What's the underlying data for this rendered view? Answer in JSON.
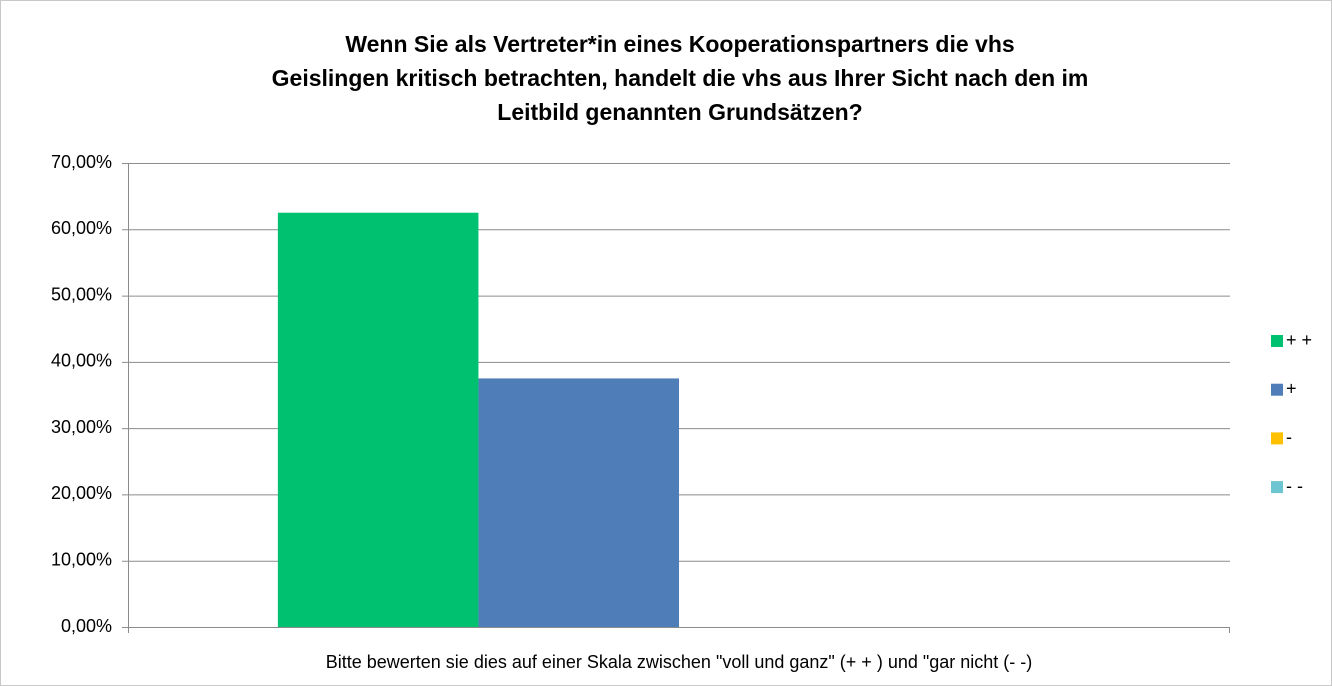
{
  "chart_data": {
    "type": "bar",
    "title": [
      "Wenn Sie als Vertreter*in eines Kooperationspartners die vhs",
      "Geislingen kritisch betrachten, handelt die vhs aus Ihrer Sicht nach den im",
      "Leitbild genannten Grundsätzen?"
    ],
    "categories": [
      "Bitte bewerten sie dies auf einer Skala zwischen \"voll und ganz\" (+ + ) und \"gar nicht (- -)"
    ],
    "series": [
      {
        "name": "+ +",
        "color": "#00c170",
        "values": [
          62.5
        ]
      },
      {
        "name": "+",
        "color": "#4f7db8",
        "values": [
          37.5
        ]
      },
      {
        "name": "-",
        "color": "#ffc000",
        "values": [
          0
        ]
      },
      {
        "name": "- -",
        "color": "#6cc5d0",
        "values": [
          0
        ]
      }
    ],
    "ylim": [
      0,
      70
    ],
    "yticks": [
      {
        "value": 0,
        "label": "0,00%"
      },
      {
        "value": 10,
        "label": "10,00%"
      },
      {
        "value": 20,
        "label": "20,00%"
      },
      {
        "value": 30,
        "label": "30,00%"
      },
      {
        "value": 40,
        "label": "40,00%"
      },
      {
        "value": 50,
        "label": "50,00%"
      },
      {
        "value": 60,
        "label": "60,00%"
      },
      {
        "value": 70,
        "label": "70,00%"
      }
    ],
    "grid": true,
    "legend": "right"
  }
}
